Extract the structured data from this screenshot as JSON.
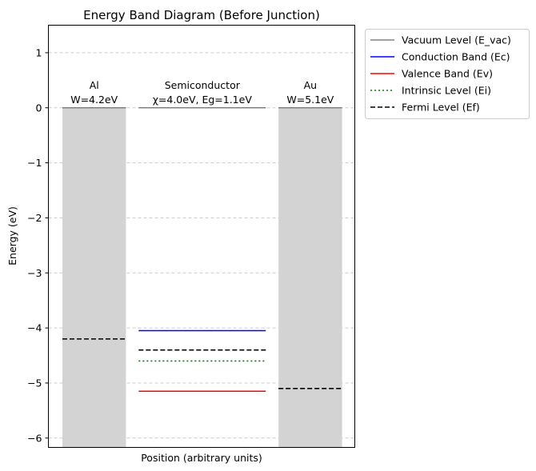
{
  "chart_data": {
    "type": "line",
    "title": "Energy Band Diagram (Before Junction)",
    "xlabel": "Position (arbitrary units)",
    "ylabel": "Energy (eV)",
    "ylim": [
      -6.17,
      1.5
    ],
    "yticks": [
      1,
      0,
      -1,
      -2,
      -3,
      -4,
      -5,
      -6
    ],
    "ytick_labels": [
      "1",
      "0",
      "−1",
      "−2",
      "−3",
      "−4",
      "−5",
      "−6"
    ],
    "grid": true,
    "legend_position": "outside right, top",
    "regions": [
      {
        "key": "al",
        "name": "Al",
        "label_line1": "Al",
        "label_line2": "W=4.2eV",
        "x_range": [
          -0.5,
          0.5
        ],
        "metal": true,
        "fill": "#d3d3d3"
      },
      {
        "key": "sc",
        "name": "Semiconductor",
        "label_line1": "Semiconductor",
        "label_line2": "χ=4.0eV, Eg=1.1eV",
        "x_range": [
          0.7,
          2.7
        ],
        "metal": false
      },
      {
        "key": "au",
        "name": "Au",
        "label_line1": "Au",
        "label_line2": "W=5.1eV",
        "x_range": [
          2.9,
          3.9
        ],
        "metal": true,
        "fill": "#d3d3d3"
      }
    ],
    "xlim": [
      -0.72,
      4.1
    ],
    "series": [
      {
        "name": "Vacuum Level (E_vac)",
        "color": "#808080",
        "dash": "solid",
        "segments": [
          {
            "x": [
              -0.5,
              0.5
            ],
            "y": 0.0
          },
          {
            "x": [
              0.7,
              2.7
            ],
            "y": 0.0
          },
          {
            "x": [
              2.9,
              3.9
            ],
            "y": 0.0
          }
        ]
      },
      {
        "name": "Conduction Band (Ec)",
        "color": "#0000ff",
        "dash": "solid",
        "segments": [
          {
            "x": [
              0.7,
              2.7
            ],
            "y": -4.05
          }
        ]
      },
      {
        "name": "Valence Band (Ev)",
        "color": "#ff0000",
        "dash": "solid",
        "segments": [
          {
            "x": [
              0.7,
              2.7
            ],
            "y": -5.15
          }
        ]
      },
      {
        "name": "Intrinsic Level (Ei)",
        "color": "#008000",
        "dash": "dotted",
        "segments": [
          {
            "x": [
              0.7,
              2.7
            ],
            "y": -4.6
          }
        ]
      },
      {
        "name": "Fermi Level (Ef)",
        "color": "#000000",
        "dash": "dashed",
        "segments": [
          {
            "x": [
              -0.5,
              0.5
            ],
            "y": -4.2
          },
          {
            "x": [
              0.7,
              2.7
            ],
            "y": -4.4
          },
          {
            "x": [
              2.9,
              3.9
            ],
            "y": -5.1
          }
        ]
      }
    ]
  }
}
